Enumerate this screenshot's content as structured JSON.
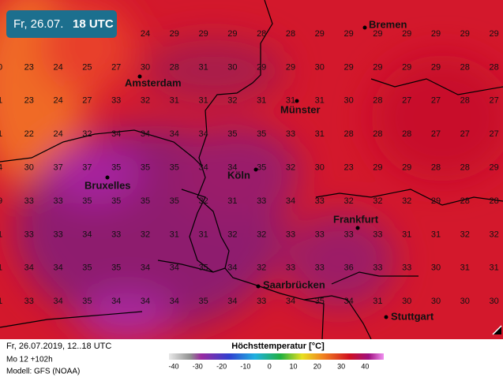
{
  "badge": {
    "date": "Fr, 26.07.",
    "time": "18 UTC"
  },
  "grid": {
    "rows": [
      [
        24,
        29,
        29,
        29,
        28,
        28,
        29,
        29,
        29,
        29,
        29,
        29,
        29
      ],
      [
        0,
        23,
        24,
        25,
        27,
        30,
        28,
        31,
        30,
        29,
        29,
        30,
        29,
        29,
        29,
        29,
        28,
        28
      ],
      [
        1,
        23,
        24,
        27,
        33,
        32,
        31,
        31,
        32,
        31,
        31,
        31,
        30,
        28,
        27,
        27,
        28,
        27
      ],
      [
        1,
        22,
        24,
        32,
        34,
        34,
        34,
        34,
        35,
        35,
        33,
        31,
        28,
        28,
        28,
        27,
        27,
        27
      ],
      [
        4,
        30,
        37,
        37,
        35,
        35,
        35,
        34,
        34,
        35,
        32,
        30,
        23,
        29,
        29,
        28,
        28,
        29
      ],
      [
        9,
        33,
        33,
        35,
        35,
        35,
        35,
        32,
        31,
        33,
        34,
        33,
        32,
        32,
        32,
        29,
        28,
        28
      ],
      [
        1,
        33,
        33,
        34,
        33,
        32,
        31,
        31,
        32,
        32,
        33,
        33,
        33,
        33,
        31,
        31,
        32,
        32
      ],
      [
        1,
        34,
        34,
        35,
        35,
        34,
        34,
        35,
        34,
        32,
        33,
        33,
        36,
        33,
        33,
        30,
        31,
        31
      ],
      [
        1,
        33,
        34,
        35,
        34,
        34,
        34,
        35,
        34,
        33,
        34,
        35,
        34,
        31,
        30,
        30,
        30,
        30
      ]
    ]
  },
  "cities": [
    "Bremen",
    "Amsterdam",
    "Münster",
    "Köln",
    "Bruxelles",
    "Frankfurt",
    "Saarbrücken",
    "Stuttgart"
  ],
  "footer": {
    "run": "Fr, 26.07.2019, 12..18 UTC",
    "lead": "Mo 12 +102h",
    "model": "Modell: GFS (NOAA)",
    "legend_title": "Höchsttemperatur [°C]"
  },
  "colorbar": {
    "ticks": [
      -40,
      -30,
      -20,
      -10,
      0,
      10,
      20,
      30,
      40
    ]
  }
}
